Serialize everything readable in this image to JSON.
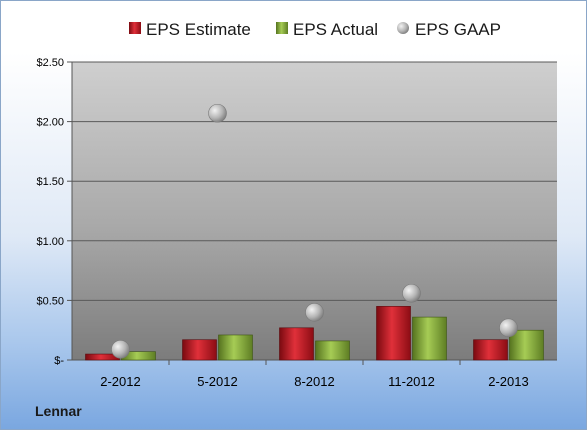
{
  "chart_data": {
    "type": "bar",
    "categories": [
      "2-2012",
      "5-2012",
      "8-2012",
      "11-2012",
      "2-2013"
    ],
    "series": [
      {
        "name": "EPS Estimate",
        "values": [
          0.05,
          0.17,
          0.27,
          0.45,
          0.17
        ],
        "color": "#c8141e",
        "kind": "bar"
      },
      {
        "name": "EPS Actual",
        "values": [
          0.07,
          0.21,
          0.16,
          0.36,
          0.25
        ],
        "color": "#8cb43c",
        "kind": "bar"
      },
      {
        "name": "EPS GAAP",
        "values": [
          0.09,
          2.07,
          0.4,
          0.56,
          0.27
        ],
        "color": "#a8a8a8",
        "kind": "marker"
      }
    ],
    "yticks": [
      "$-",
      "$0.50",
      "$1.00",
      "$1.50",
      "$2.00",
      "$2.50"
    ],
    "ytick_values": [
      0,
      0.5,
      1.0,
      1.5,
      2.0,
      2.5
    ],
    "ylim": [
      0,
      2.5
    ],
    "grid": true,
    "legend_position": "top",
    "footer_label": "Lennar"
  }
}
